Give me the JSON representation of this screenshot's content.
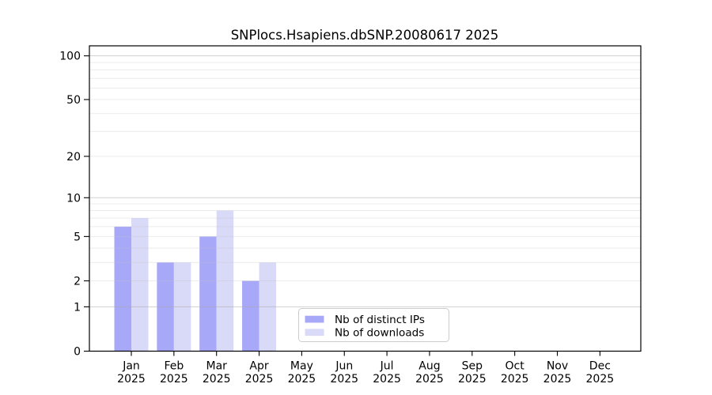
{
  "figure": {
    "background": "#ffffff"
  },
  "chart_data": {
    "type": "bar",
    "title": "SNPlocs.Hsapiens.dbSNP.20080617 2025",
    "categories": [
      "Jan",
      "Feb",
      "Mar",
      "Apr",
      "May",
      "Jun",
      "Jul",
      "Aug",
      "Sep",
      "Oct",
      "Nov",
      "Dec"
    ],
    "category_sublabel": "2025",
    "series": [
      {
        "key": "distinct-ips",
        "name": "Nb of distinct IPs",
        "color": "#a8a8f8",
        "values": [
          6,
          3,
          5,
          2,
          0,
          0,
          0,
          0,
          0,
          0,
          0,
          0
        ]
      },
      {
        "key": "downloads",
        "name": "Nb of downloads",
        "color": "#d9d9f8",
        "values": [
          7,
          3,
          8,
          3,
          0,
          0,
          0,
          0,
          0,
          0,
          0,
          0
        ]
      }
    ],
    "xlabel": "",
    "ylabel": "",
    "yscale": "log1p",
    "ylim": [
      0,
      118
    ],
    "yticks": [
      0,
      1,
      2,
      5,
      10,
      20,
      50,
      100
    ],
    "grid": {
      "major_lines": [
        1,
        10,
        100
      ],
      "minor_lines": [
        2,
        3,
        4,
        5,
        6,
        7,
        8,
        9,
        20,
        30,
        40,
        50,
        60,
        70,
        80,
        90
      ],
      "major_color": "#a9a9a9",
      "minor_color": "#c4c4c4"
    },
    "legend": {
      "position": "lower center",
      "border_color": "#cccccc",
      "background": "#ffffff"
    },
    "axis_color": "#000000"
  }
}
